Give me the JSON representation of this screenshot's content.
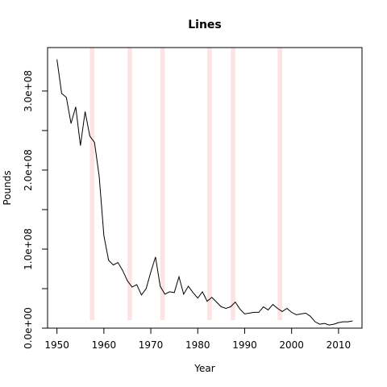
{
  "chart_data": {
    "type": "line",
    "title": "Lines",
    "xlabel": "Year",
    "ylabel": "Pounds",
    "xlim": [
      1948,
      2015
    ],
    "ylim": [
      0,
      355000000
    ],
    "x_ticks": [
      1950,
      1960,
      1970,
      1980,
      1990,
      2000,
      2010
    ],
    "x_tick_labels": [
      "1950",
      "1960",
      "1970",
      "1980",
      "1990",
      "2000",
      "2010"
    ],
    "y_ticks": [
      0,
      50000000,
      100000000,
      150000000,
      200000000,
      250000000,
      300000000
    ],
    "y_tick_labels": [
      "0.0e+00",
      "",
      "1.0e+08",
      "",
      "2.0e+08",
      "",
      "3.0e+08"
    ],
    "highlight_years": [
      1957.5,
      1965.5,
      1972.5,
      1982.5,
      1987.5,
      1997.5
    ],
    "highlight_color": "#fde3e3",
    "line_color": "#000000",
    "grid": false,
    "series": [
      {
        "x": [
          1950,
          1951,
          1952,
          1953,
          1954,
          1955,
          1956,
          1957,
          1958,
          1959,
          1960,
          1961,
          1962,
          1963,
          1964,
          1965,
          1966,
          1967,
          1968,
          1969,
          1970,
          1971,
          1972,
          1973,
          1974,
          1975,
          1976,
          1977,
          1978,
          1979,
          1980,
          1981,
          1982,
          1983,
          1984,
          1985,
          1986,
          1987,
          1988,
          1989,
          1990,
          1991,
          1992,
          1993,
          1994,
          1995,
          1996,
          1997,
          1998,
          1999,
          2000,
          2001,
          2002,
          2003,
          2004,
          2005,
          2006,
          2007,
          2008,
          2009,
          2010,
          2011,
          2012,
          2013
        ],
        "values": [
          340000000,
          297000000,
          292000000,
          259000000,
          280000000,
          231000000,
          274000000,
          243000000,
          235000000,
          192000000,
          117000000,
          86000000,
          80000000,
          83000000,
          73000000,
          60000000,
          52000000,
          55000000,
          42000000,
          50000000,
          71000000,
          90000000,
          53000000,
          43000000,
          46000000,
          45000000,
          65000000,
          43000000,
          53000000,
          45000000,
          38000000,
          46000000,
          34000000,
          39000000,
          33000000,
          27000000,
          25000000,
          27000000,
          33000000,
          24000000,
          18000000,
          19000000,
          20000000,
          20000000,
          27000000,
          23000000,
          30000000,
          25000000,
          21000000,
          25000000,
          20000000,
          17000000,
          18000000,
          19000000,
          15000000,
          8000000,
          5000000,
          6000000,
          4000000,
          5000000,
          7000000,
          8000000,
          8000000,
          9000000
        ]
      }
    ]
  }
}
